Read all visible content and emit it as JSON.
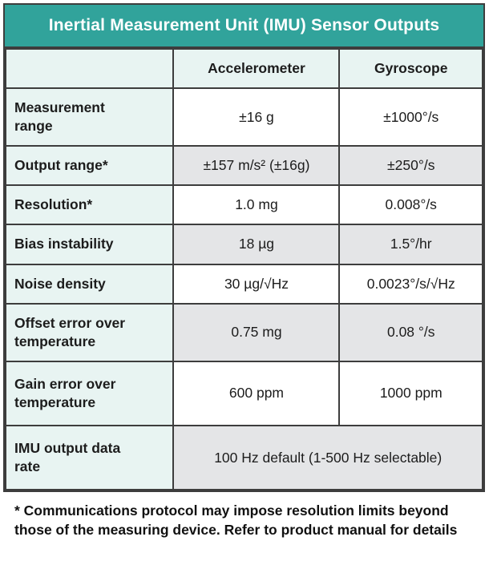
{
  "title": "Inertial Measurement Unit (IMU) Sensor Outputs",
  "table": {
    "column_headers": [
      "Accelerometer",
      "Gyroscope"
    ],
    "rows": [
      {
        "label": "Measurement range",
        "accel": "±16 g",
        "gyro": "±1000°/s"
      },
      {
        "label": "Output range*",
        "accel": "±157 m/s² (±16g)",
        "gyro": "±250°/s"
      },
      {
        "label": "Resolution*",
        "accel": "1.0 mg",
        "gyro": "0.008°/s"
      },
      {
        "label": "Bias instability",
        "accel": "18 µg",
        "gyro": "1.5°/hr"
      },
      {
        "label": "Noise density",
        "accel": "30 µg/√Hz",
        "gyro": "0.0023°/s/√Hz"
      },
      {
        "label": "Offset error over temperature",
        "accel": "0.75 mg",
        "gyro": "0.08 °/s"
      },
      {
        "label": "Gain error over temperature",
        "accel": "600 ppm",
        "gyro": "1000 ppm"
      },
      {
        "label": "IMU output data rate",
        "merged": "100 Hz default (1-500 Hz selectable)"
      }
    ]
  },
  "footnote": "* Communications protocol may impose resolution limits beyond those of the measuring device. Refer to product manual for details",
  "colors": {
    "teal": "#31a39b",
    "mint": "#e8f4f2",
    "stripe": "#e4e5e7",
    "border": "#3d3d3d",
    "text": "#1c1c1c"
  }
}
